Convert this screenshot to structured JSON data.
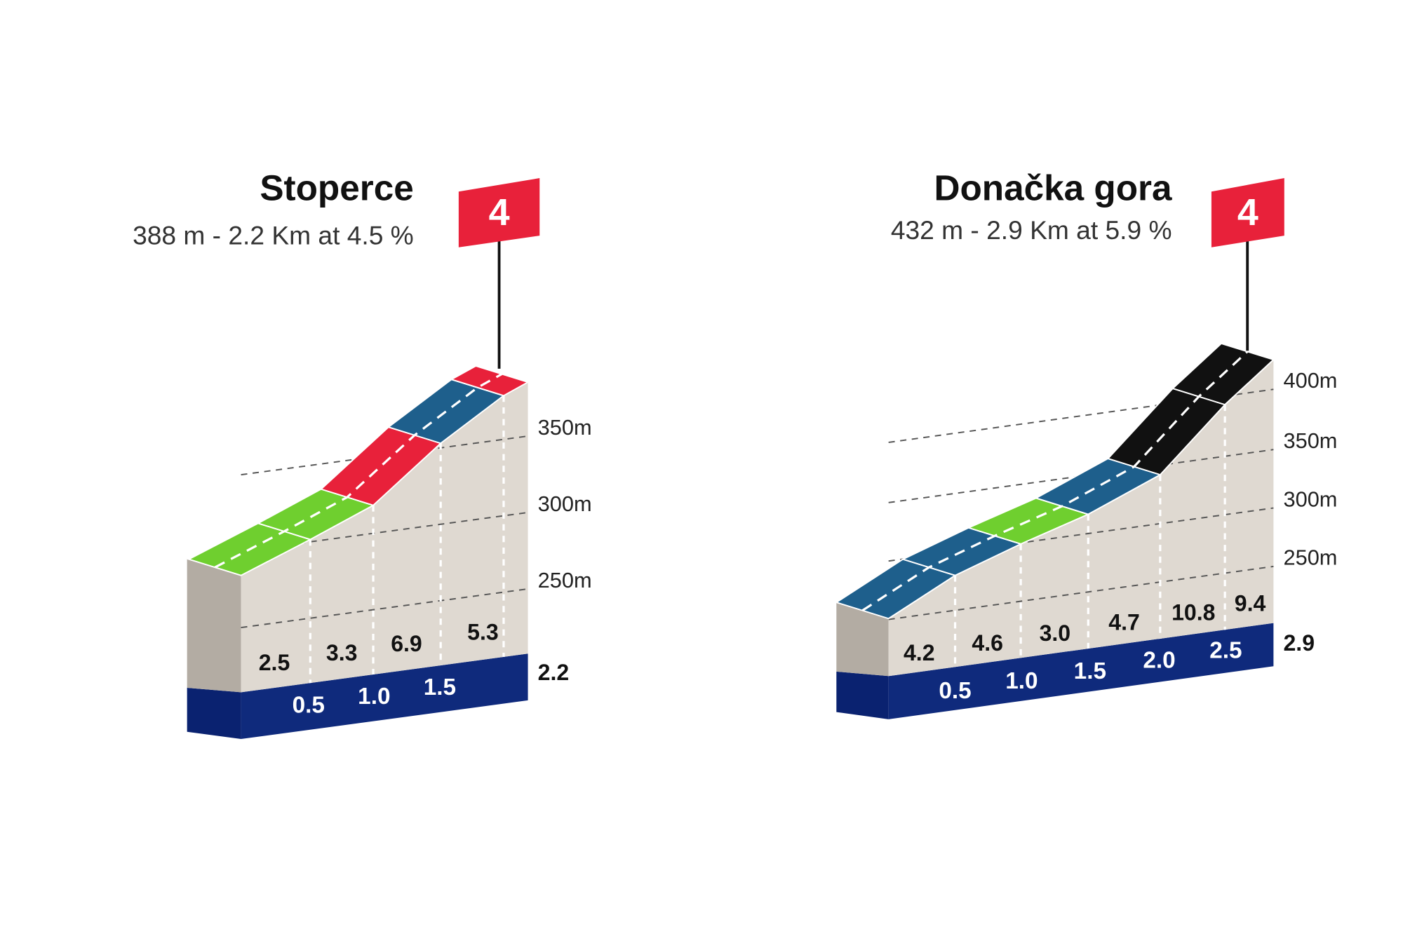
{
  "profiles": [
    {
      "title": "Stoperce",
      "subtitle": "388 m - 2.2 Km at 4.5 %",
      "category": "4",
      "elevation_labels": [
        "250m",
        "300m",
        "350m"
      ],
      "length_label": "2.2",
      "gradients": [
        "2.5",
        "3.3",
        "6.9",
        "5.3"
      ],
      "km_labels": [
        "0.5",
        "1.0",
        "1.5"
      ]
    },
    {
      "title": "Donačka gora",
      "subtitle": "432 m - 2.9 Km at 5.9 %",
      "category": "4",
      "elevation_labels": [
        "250m",
        "300m",
        "350m",
        "400m"
      ],
      "length_label": "2.9",
      "gradients": [
        "4.2",
        "4.6",
        "3.0",
        "4.7",
        "10.8",
        "9.4"
      ],
      "km_labels": [
        "0.5",
        "1.0",
        "1.5",
        "2.0",
        "2.5"
      ]
    }
  ]
}
